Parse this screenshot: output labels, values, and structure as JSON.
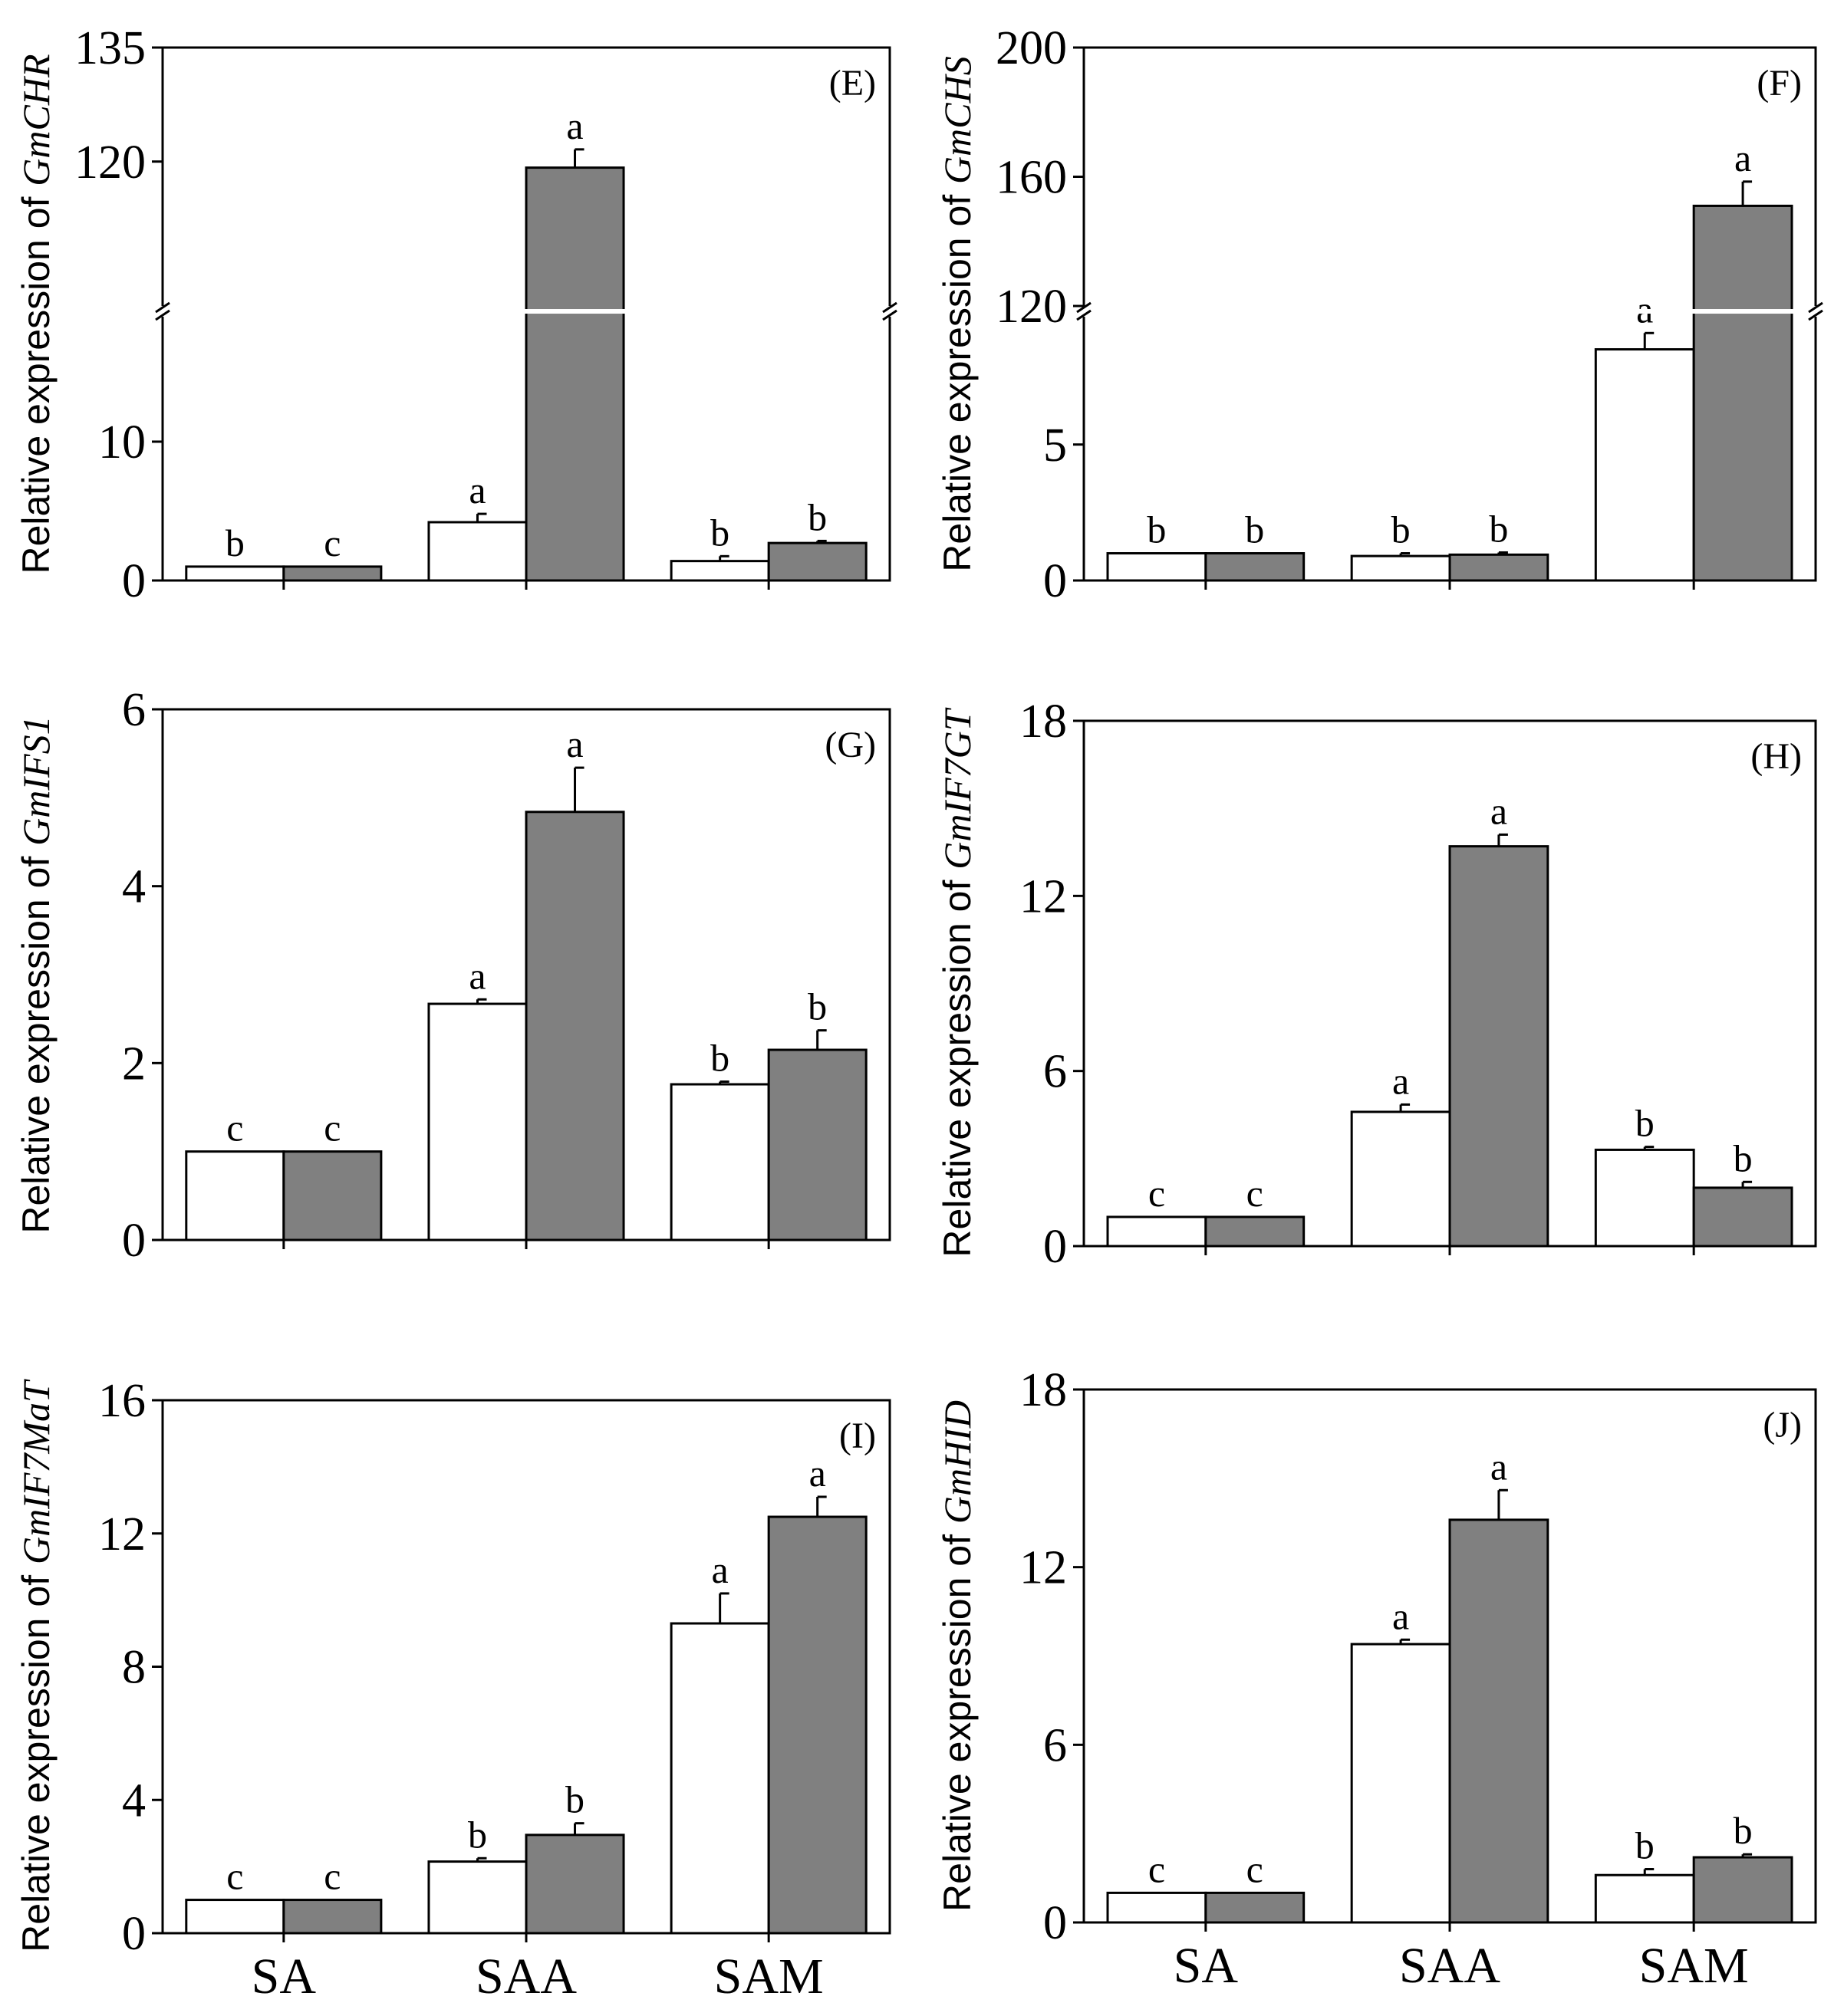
{
  "figure": {
    "categories": [
      "SA",
      "SAA",
      "SAM"
    ]
  },
  "colors": {
    "bar_open": "#ffffff",
    "bar_filled": "#808080",
    "axis": "#000000",
    "break_gap": "#ffffff"
  },
  "chart_data": [
    {
      "panel": "(E)",
      "type": "bar",
      "gene": "GmCHR",
      "ylabel_prefix": "Relative expression of ",
      "categories": [
        "SA",
        "SAA",
        "SAM"
      ],
      "axis_break": true,
      "ylim_lower": [
        0,
        19
      ],
      "ylim_upper": [
        101,
        135
      ],
      "yticks_lower": [
        0,
        10
      ],
      "yticks_upper": [
        120,
        135
      ],
      "series": [
        {
          "name": "open",
          "values": [
            1.0,
            4.2,
            1.4
          ],
          "errors": [
            0,
            0.6,
            0.35
          ],
          "letters": [
            "b",
            "a",
            "b"
          ]
        },
        {
          "name": "filled",
          "values": [
            1.0,
            119.2,
            2.7
          ],
          "errors": [
            0,
            2.4,
            0.15
          ],
          "letters": [
            "c",
            "a",
            "b"
          ]
        }
      ]
    },
    {
      "panel": "(F)",
      "type": "bar",
      "gene": "GmCHS",
      "ylabel_prefix": "Relative expression of ",
      "categories": [
        "SA",
        "SAA",
        "SAM"
      ],
      "axis_break": true,
      "ylim_lower": [
        0,
        9.7
      ],
      "ylim_upper": [
        120,
        200
      ],
      "yticks_lower": [
        0,
        5
      ],
      "yticks_upper": [
        120,
        160,
        200
      ],
      "series": [
        {
          "name": "open",
          "values": [
            1.0,
            0.9,
            8.5
          ],
          "errors": [
            0,
            0.1,
            0.6
          ],
          "letters": [
            "b",
            "b",
            "a"
          ]
        },
        {
          "name": "filled",
          "values": [
            1.0,
            0.95,
            151
          ],
          "errors": [
            0,
            0.08,
            7.5
          ],
          "letters": [
            "b",
            "b",
            "a"
          ]
        }
      ]
    },
    {
      "panel": "(G)",
      "type": "bar",
      "gene": "GmIFS1",
      "ylabel_prefix": "Relative expression of ",
      "categories": [
        "SA",
        "SAA",
        "SAM"
      ],
      "axis_break": false,
      "ylim": [
        0,
        6
      ],
      "yticks": [
        0,
        2,
        4,
        6
      ],
      "series": [
        {
          "name": "open",
          "values": [
            1.0,
            2.67,
            1.76
          ],
          "errors": [
            0,
            0.05,
            0.03
          ],
          "letters": [
            "c",
            "a",
            "b"
          ]
        },
        {
          "name": "filled",
          "values": [
            1.0,
            4.84,
            2.15
          ],
          "errors": [
            0,
            0.5,
            0.22
          ],
          "letters": [
            "c",
            "a",
            "b"
          ]
        }
      ]
    },
    {
      "panel": "(H)",
      "type": "bar",
      "gene": "GmIF7GT",
      "ylabel_prefix": "Relative expression of ",
      "categories": [
        "SA",
        "SAA",
        "SAM"
      ],
      "axis_break": false,
      "ylim": [
        0,
        18
      ],
      "yticks": [
        0,
        6,
        12,
        18
      ],
      "series": [
        {
          "name": "open",
          "values": [
            1.0,
            4.6,
            3.3
          ],
          "errors": [
            0,
            0.25,
            0.1
          ],
          "letters": [
            "c",
            "a",
            "b"
          ]
        },
        {
          "name": "filled",
          "values": [
            1.0,
            13.7,
            2.0
          ],
          "errors": [
            0,
            0.4,
            0.2
          ],
          "letters": [
            "c",
            "a",
            "b"
          ]
        }
      ]
    },
    {
      "panel": "(I)",
      "type": "bar",
      "gene": "GmIF7MaT",
      "ylabel_prefix": "Relative expression of ",
      "categories": [
        "SA",
        "SAA",
        "SAM"
      ],
      "axis_break": false,
      "ylim": [
        0,
        16
      ],
      "yticks": [
        0,
        4,
        8,
        12,
        16
      ],
      "series": [
        {
          "name": "open",
          "values": [
            1.0,
            2.15,
            9.3
          ],
          "errors": [
            0,
            0.1,
            0.9
          ],
          "letters": [
            "c",
            "b",
            "a"
          ]
        },
        {
          "name": "filled",
          "values": [
            1.0,
            2.95,
            12.5
          ],
          "errors": [
            0,
            0.35,
            0.6
          ],
          "letters": [
            "c",
            "b",
            "a"
          ]
        }
      ]
    },
    {
      "panel": "(J)",
      "type": "bar",
      "gene": "GmHID",
      "ylabel_prefix": "Relative expression of ",
      "categories": [
        "SA",
        "SAA",
        "SAM"
      ],
      "axis_break": false,
      "ylim": [
        0,
        18
      ],
      "yticks": [
        0,
        6,
        12,
        18
      ],
      "series": [
        {
          "name": "open",
          "values": [
            1.0,
            9.4,
            1.6
          ],
          "errors": [
            0,
            0.15,
            0.2
          ],
          "letters": [
            "c",
            "a",
            "b"
          ]
        },
        {
          "name": "filled",
          "values": [
            1.0,
            13.6,
            2.2
          ],
          "errors": [
            0,
            1.0,
            0.1
          ],
          "letters": [
            "c",
            "a",
            "b"
          ]
        }
      ]
    }
  ]
}
